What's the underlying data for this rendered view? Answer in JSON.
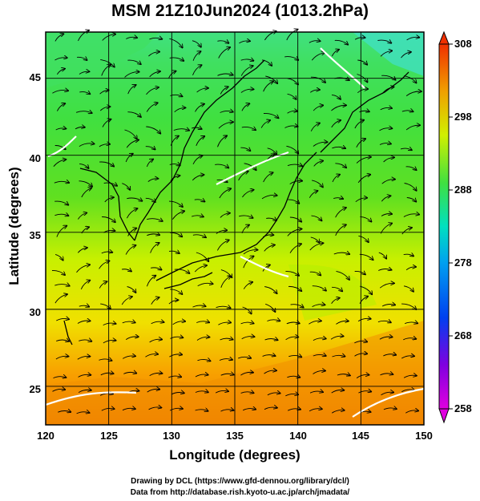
{
  "title": "MSM 21Z10Jun2024 (1013.2hPa)",
  "xlabel": "Longitude (degrees)",
  "ylabel": "Latitude  (degrees)",
  "credit_line1": "Drawing by DCL (https://www.gfd-dennou.org/library/dcl/)",
  "credit_line2": "Data from http://database.rish.kyoto-u.ac.jp/arch/jmadata/",
  "xticks": [
    {
      "label": "120"
    },
    {
      "label": "125"
    },
    {
      "label": "130"
    },
    {
      "label": "135"
    },
    {
      "label": "140"
    },
    {
      "label": "145"
    },
    {
      "label": "150"
    }
  ],
  "yticks": [
    {
      "label": "25"
    },
    {
      "label": "30"
    },
    {
      "label": "35"
    },
    {
      "label": "40"
    },
    {
      "label": "45"
    }
  ],
  "colorbar": {
    "min": 258,
    "max": 308,
    "ticks": [
      "308",
      "298",
      "288",
      "278",
      "268",
      "258"
    ]
  },
  "map": {
    "lon_range": [
      120,
      150
    ],
    "lat_range": [
      22.5,
      48
    ],
    "gridlines": true,
    "field": "temperature (K) with surface wind streamlines",
    "colors": {
      "warm": "#f08000",
      "mid": "#e0f000",
      "cool": "#30d030",
      "cold": "#20d0f0",
      "contour": "#ffffff"
    }
  }
}
